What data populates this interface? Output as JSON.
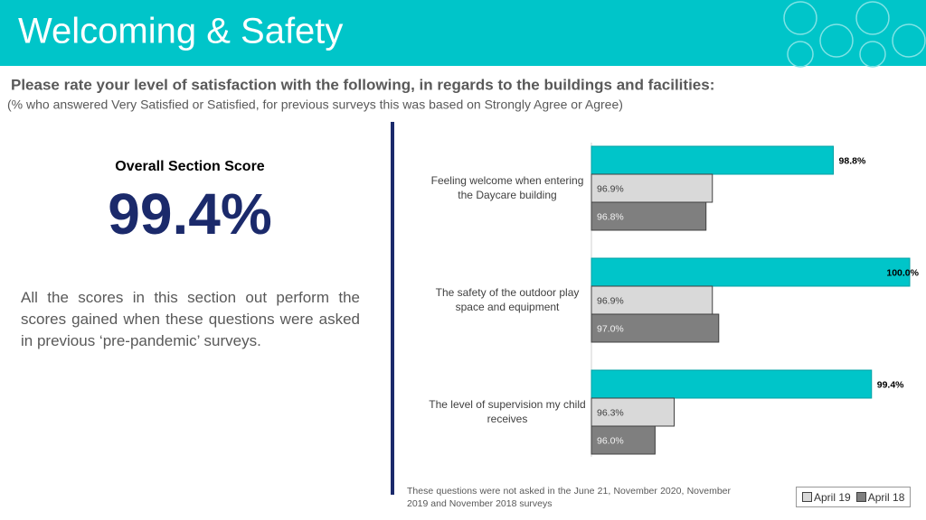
{
  "header": {
    "title": "Welcoming & Safety"
  },
  "question": {
    "text": "Please rate your level of satisfaction with the following, in regards to the buildings and facilities:",
    "note": "(% who answered Very Satisfied or Satisfied, for previous surveys this was based on Strongly Agree or Agree)"
  },
  "summary": {
    "label": "Overall Section Score",
    "score": "99.4%",
    "comment": "All the scores in this section out perform the scores gained when these questions were asked in previous ‘pre-pandemic’ surveys."
  },
  "footnote": "These questions were not asked in the June 21, November 2020, November 2019 and November 2018 surveys",
  "chart_data": {
    "type": "bar",
    "orientation": "horizontal",
    "categories": [
      "Feeling welcome when entering the Daycare building",
      "The safety of the outdoor play space and equipment",
      "The level of supervision my child receives"
    ],
    "series": [
      {
        "color": "#00c5c9",
        "values": [
          98.8,
          100.0,
          99.4
        ],
        "value_labels": [
          "98.8%",
          "100.0%",
          "99.4%"
        ]
      },
      {
        "name": "April 19",
        "color": "#d9d9d9",
        "values": [
          96.9,
          96.9,
          96.3
        ],
        "value_labels": [
          "96.9%",
          "96.9%",
          "96.3%"
        ]
      },
      {
        "name": "April 18",
        "color": "#7f7f7f",
        "values": [
          96.8,
          97.0,
          96.0
        ],
        "value_labels": [
          "96.8%",
          "97.0%",
          "96.0%"
        ]
      }
    ],
    "xlim": [
      95,
      100
    ],
    "legend": "bottom-right"
  }
}
